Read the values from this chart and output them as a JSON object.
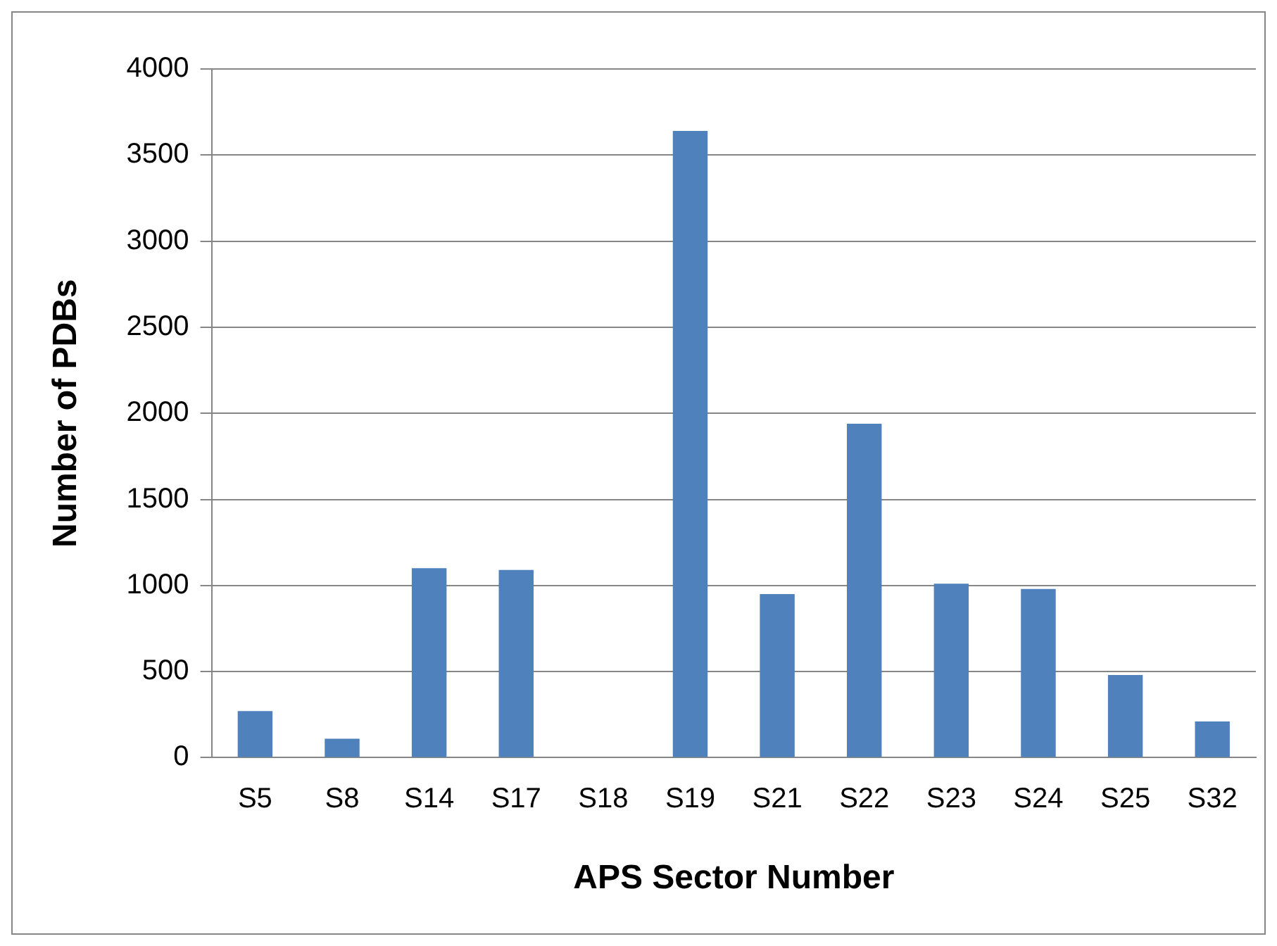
{
  "chart_data": {
    "type": "bar",
    "xlabel": "APS Sector Number",
    "ylabel": "Number of PDBs",
    "categories": [
      "S5",
      "S8",
      "S14",
      "S17",
      "S18",
      "S19",
      "S21",
      "S22",
      "S23",
      "S24",
      "S25",
      "S32"
    ],
    "values": [
      270,
      110,
      1100,
      1090,
      0,
      3640,
      950,
      1940,
      1010,
      980,
      480,
      210
    ],
    "color": "#4f81bd",
    "ylim": [
      0,
      4000
    ],
    "yticks": [
      0,
      500,
      1000,
      1500,
      2000,
      2500,
      3000,
      3500,
      4000
    ],
    "grid": "y",
    "legend": false
  }
}
